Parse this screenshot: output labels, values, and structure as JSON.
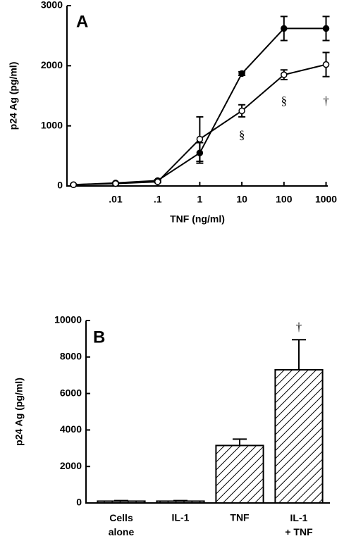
{
  "chart_data": [
    {
      "type": "line",
      "panel_label": "A",
      "x_label": "TNF  (ng/ml)",
      "y_label": "p24  Ag  (pg/ml)",
      "x": [
        0.001,
        0.01,
        0.1,
        1,
        10,
        100,
        1000
      ],
      "log_x": true,
      "xlim": [
        0.0007,
        1100
      ],
      "ylim": [
        0,
        3000
      ],
      "xticks": [
        {
          "value": 0.01,
          "label": ".01"
        },
        {
          "value": 0.1,
          "label": ".1"
        },
        1,
        10,
        100,
        1000
      ],
      "yticks": [
        0,
        1000,
        2000,
        3000
      ],
      "series": [
        {
          "color": "#000000",
          "marker": "filled",
          "values": [
            20,
            50,
            90,
            550,
            1870,
            2620,
            2620
          ],
          "errors": [
            10,
            10,
            15,
            170,
            30,
            200,
            200
          ]
        },
        {
          "color": "#000000",
          "marker": "open",
          "values": [
            20,
            40,
            70,
            780,
            1250,
            1850,
            2020
          ],
          "errors": [
            10,
            10,
            15,
            370,
            100,
            80,
            200
          ]
        }
      ],
      "annotations": [
        {
          "text": "§",
          "x": 10,
          "y": 830
        },
        {
          "text": "§",
          "x": 100,
          "y": 1400
        },
        {
          "text": "†",
          "x": 1000,
          "y": 1400
        }
      ]
    },
    {
      "type": "bar",
      "panel_label": "B",
      "y_label": "p24  Ag  (pg/ml)",
      "categories": [
        "Cells alone",
        "IL-1",
        "TNF",
        "IL-1 + TNF"
      ],
      "values": [
        100,
        100,
        3150,
        7300
      ],
      "errors": [
        30,
        30,
        350,
        1650
      ],
      "ylim": [
        0,
        10000
      ],
      "yticks": [
        0,
        2000,
        4000,
        6000,
        8000,
        10000
      ],
      "color": "#000000",
      "hatch": true,
      "annotations": [
        {
          "text": "†",
          "x": "IL-1 + TNF",
          "y": 9600
        }
      ]
    }
  ]
}
